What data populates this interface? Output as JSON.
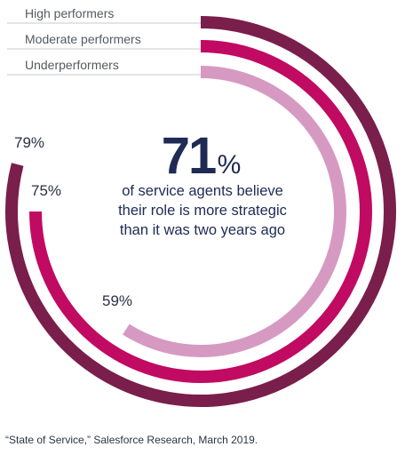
{
  "chart_data": {
    "type": "radial-bar",
    "series": [
      {
        "name": "High performers",
        "value": 79,
        "label": "79%",
        "color": "#7a1e4c"
      },
      {
        "name": "Moderate performers",
        "value": 75,
        "label": "75%",
        "color": "#c10a62"
      },
      {
        "name": "Underperformers",
        "value": 59,
        "label": "59%",
        "color": "#d69ac2"
      }
    ],
    "center_value": "71",
    "center_unit": "%",
    "center_text": [
      "of service agents believe",
      "their role is more strategic",
      "than it was two years ago"
    ],
    "max": 100
  },
  "source_text": "“State of Service,” Salesforce Research, March 2019."
}
